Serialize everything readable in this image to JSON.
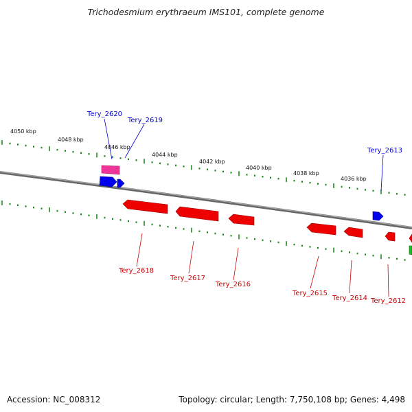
{
  "title": "Trichodesmium erythraeum IMS101, complete genome",
  "footer": {
    "accession": "Accession: NC_008312",
    "genome_info": "Topology: circular; Length: 7,750,108 bp; Genes: 4,498"
  },
  "colors": {
    "backbone": "#888888",
    "ruler_ticks": "#1e8a1e",
    "forward_gene": "#0000ee",
    "reverse_gene": "#ee0000",
    "pseudo_gene": "#ee3399",
    "rna_gene": "#22bb22"
  },
  "ruler": {
    "labels": [
      "4050 kbp",
      "4048 kbp",
      "4046 kbp",
      "4044 kbp",
      "4042 kbp",
      "4040 kbp",
      "4038 kbp",
      "4036 kbp"
    ]
  },
  "genes": {
    "top_labels": [
      "Tery_2620",
      "Tery_2619",
      "Tery_2613"
    ],
    "bottom_labels": [
      "Tery_2618",
      "Tery_2617",
      "Tery_2616",
      "Tery_2615",
      "Tery_2614",
      "Tery_2612"
    ]
  }
}
